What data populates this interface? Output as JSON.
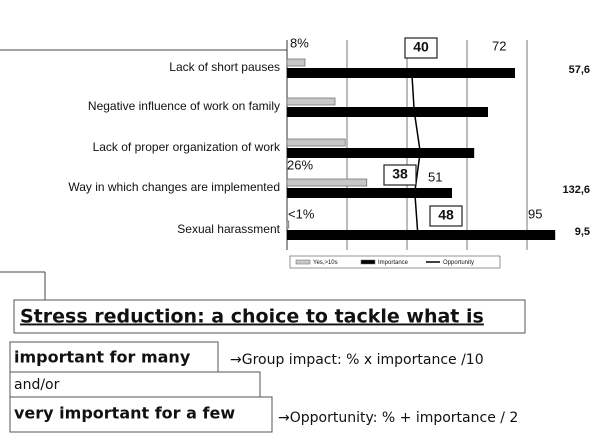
{
  "chart_data": {
    "type": "bar",
    "orientation": "horizontal",
    "categories": [
      "Lack of short pauses",
      "Negative influence of work on family",
      "Lack of proper organization of work",
      "Way in which changes are implemented",
      "Sexual harassment"
    ],
    "series": [
      {
        "name": "Yes,>10s",
        "color": "#c8c8c8",
        "values": [
          0.3,
          0.8,
          0.97,
          1.33,
          0.03
        ]
      },
      {
        "name": "Importance",
        "color": "#000000",
        "values": [
          3.8,
          3.35,
          3.12,
          2.75,
          4.47
        ]
      },
      {
        "name": "Opportunity",
        "color": "#000000",
        "type": "line",
        "values": [
          2.08,
          2.12,
          2.22,
          2.13,
          2.18
        ]
      }
    ],
    "xlim": [
      0,
      4.6
    ],
    "xticks": [
      0,
      1,
      2,
      3,
      4
    ],
    "grid": true,
    "legend": "bottom",
    "annotations": [
      "8%",
      "40",
      "72",
      "26%",
      "38",
      "51",
      "<1%",
      "48",
      "95"
    ],
    "side_labels": [
      "57,6",
      null,
      null,
      "132,6",
      "9,5"
    ]
  },
  "text": {
    "heading": "Stress reduction: a choice to tackle what is",
    "line1": "important for many",
    "note1": "→Group impact: % x  importance /10",
    "line2": "and/or",
    "line3": "very important for a few",
    "note2": "→Opportunity: % + importance / 2"
  }
}
